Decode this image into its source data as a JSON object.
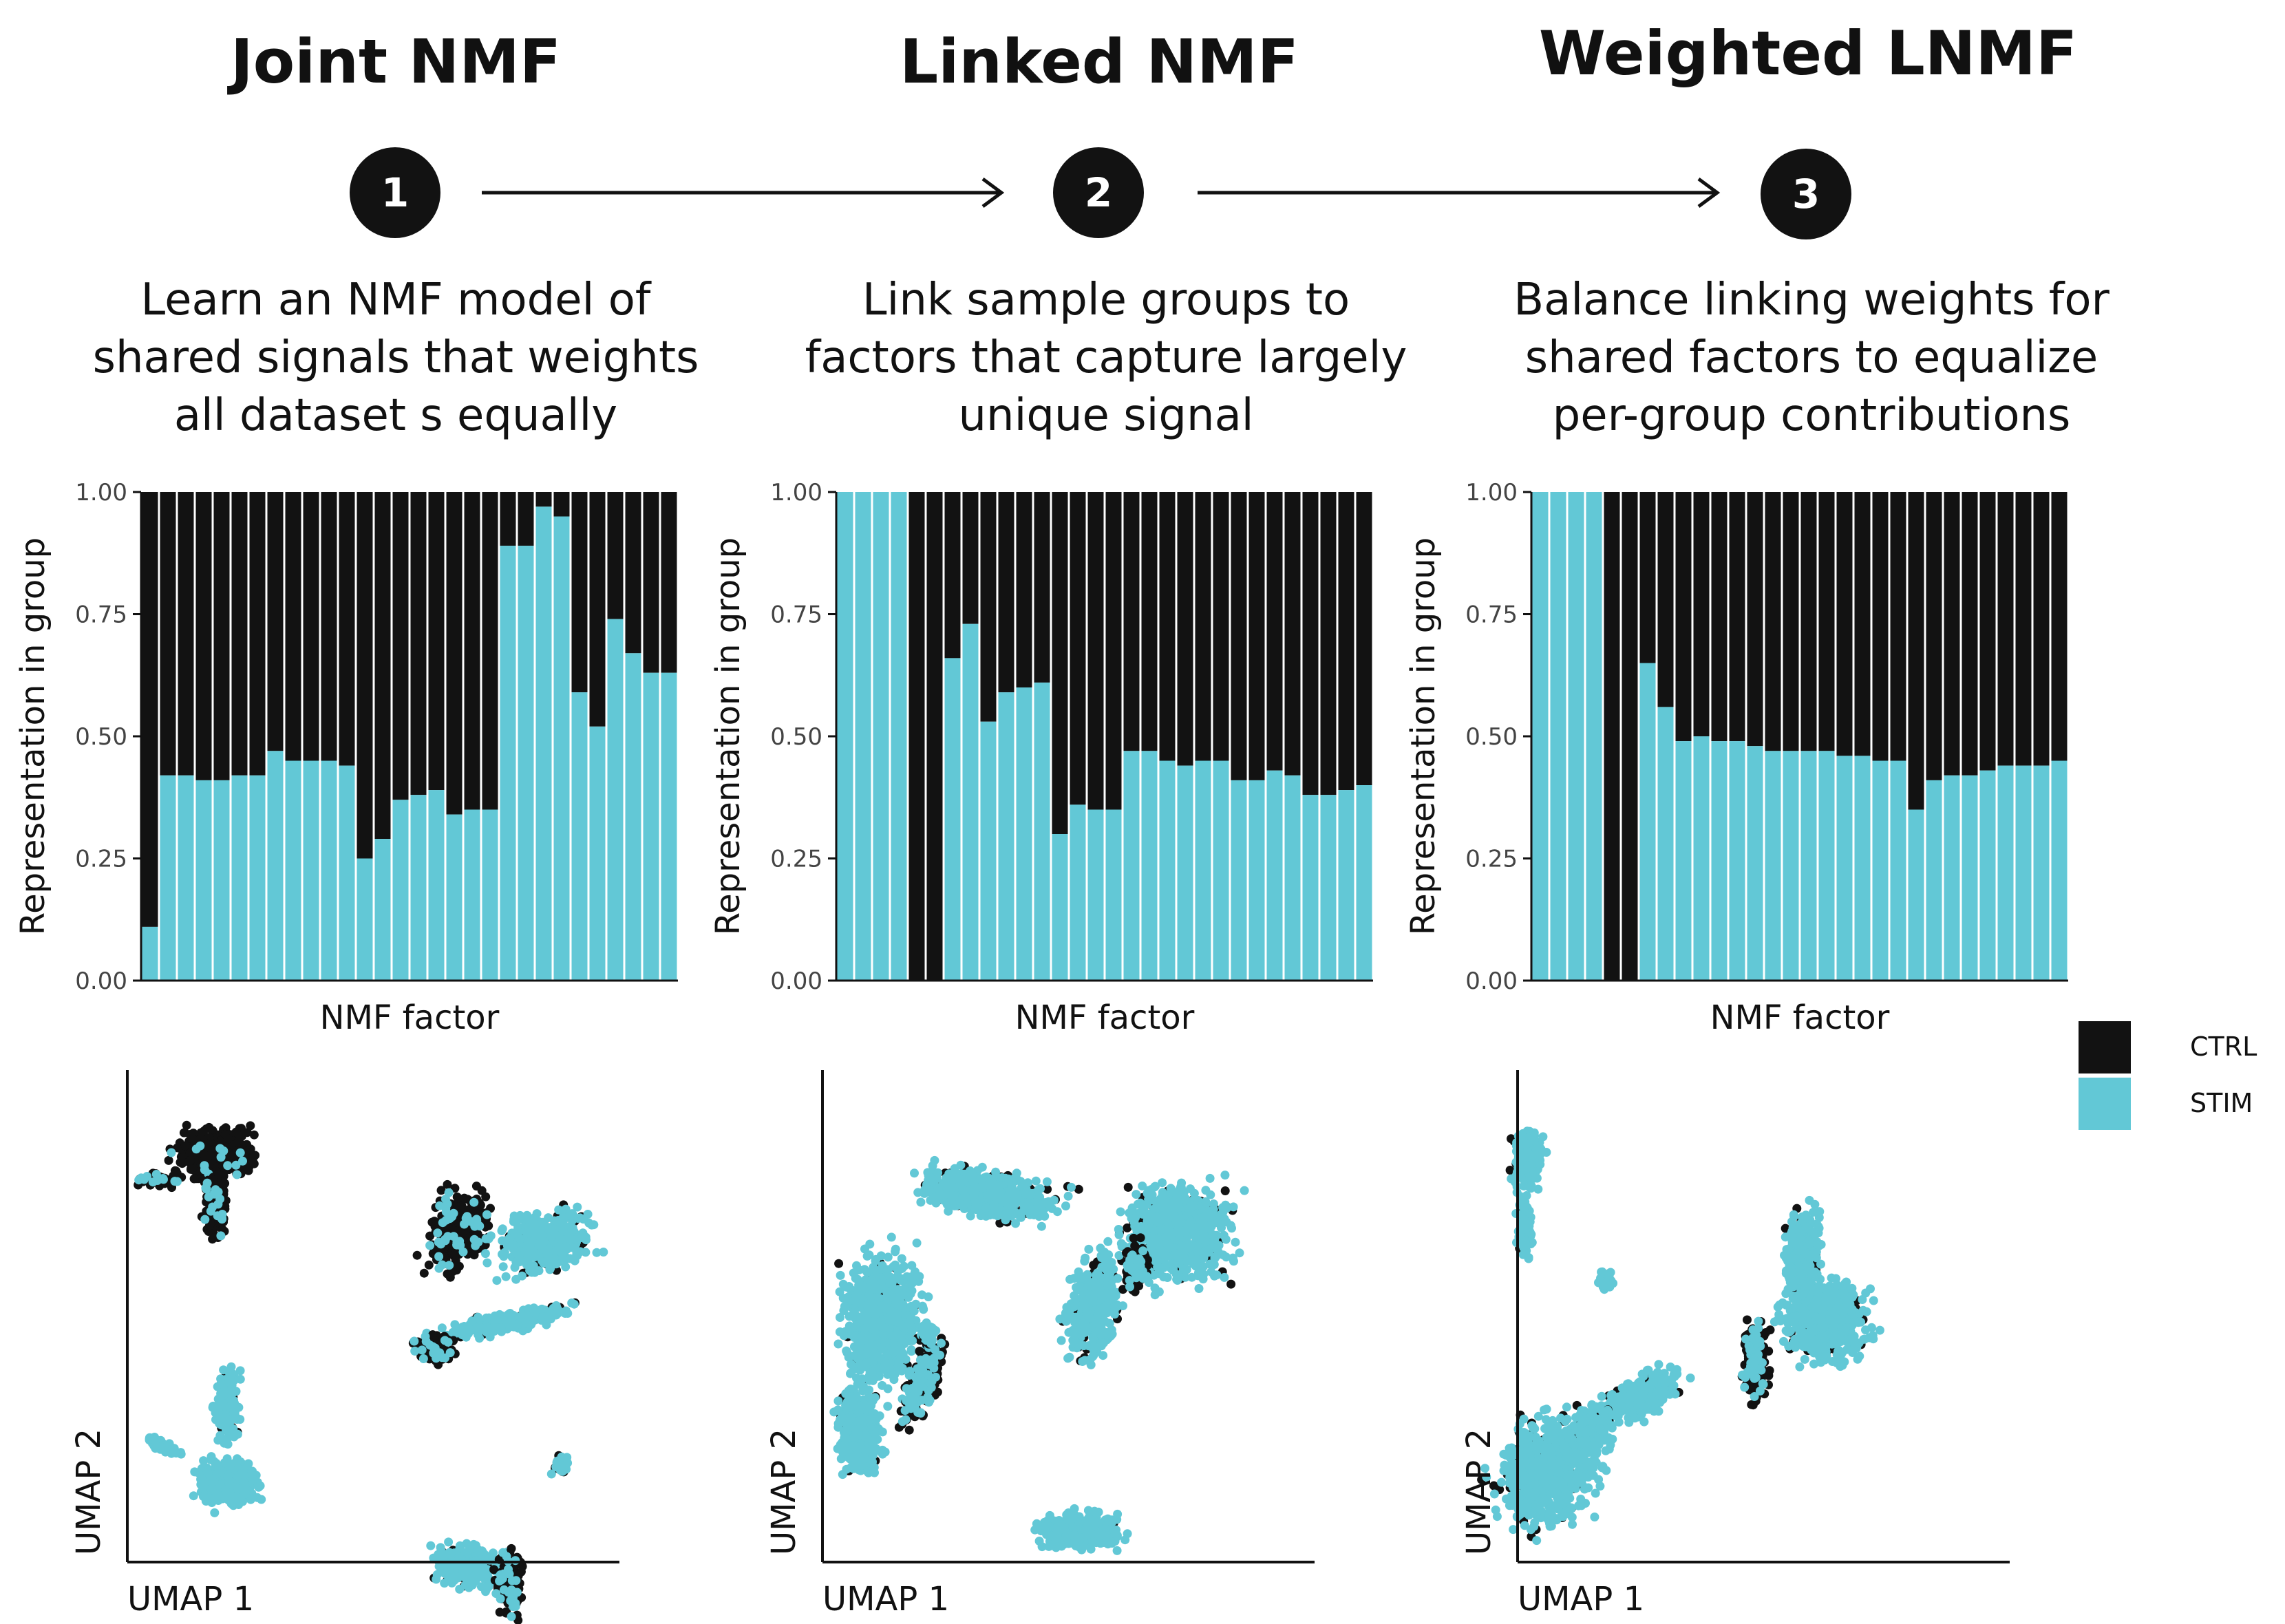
{
  "steps": [
    {
      "number": "1",
      "title": "Joint NMF",
      "description": [
        "Learn an NMF model of",
        "shared signals that weights",
        "all dataset s equally"
      ]
    },
    {
      "number": "2",
      "title": "Linked NMF",
      "description": [
        "Link sample groups to",
        "factors that capture largely",
        "unique signal"
      ]
    },
    {
      "number": "3",
      "title": "Weighted LNMF",
      "description": [
        "Balance linking weights for",
        "shared factors to equalize",
        "per-group contributions"
      ]
    }
  ],
  "colors": {
    "ctrl": "#121212",
    "stim": "#62c8d6",
    "axis": "#111111"
  },
  "legend": [
    {
      "label": "CTRL",
      "color": "#121212"
    },
    {
      "label": "STIM",
      "color": "#62c8d6"
    }
  ],
  "chart_data": [
    {
      "type": "bar",
      "stacked": true,
      "panel": "Joint NMF",
      "xlabel": "NMF factor",
      "ylabel": "Representation in group",
      "ylim": [
        0,
        1
      ],
      "yticks": [
        "0.00",
        "0.25",
        "0.50",
        "0.75",
        "1.00"
      ],
      "series": [
        {
          "name": "STIM",
          "values": [
            0.11,
            0.42,
            0.42,
            0.41,
            0.41,
            0.42,
            0.42,
            0.47,
            0.45,
            0.45,
            0.45,
            0.44,
            0.25,
            0.29,
            0.37,
            0.38,
            0.39,
            0.34,
            0.35,
            0.35,
            0.89,
            0.89,
            0.97,
            0.95,
            0.59,
            0.52,
            0.74,
            0.67,
            0.63,
            0.63
          ]
        }
      ]
    },
    {
      "type": "bar",
      "stacked": true,
      "panel": "Linked NMF",
      "xlabel": "NMF factor",
      "ylabel": "Representation in group",
      "ylim": [
        0,
        1
      ],
      "yticks": [
        "0.00",
        "0.25",
        "0.50",
        "0.75",
        "1.00"
      ],
      "series": [
        {
          "name": "STIM",
          "values": [
            1.0,
            1.0,
            1.0,
            1.0,
            0.0,
            0.0,
            0.66,
            0.73,
            0.53,
            0.59,
            0.6,
            0.61,
            0.3,
            0.36,
            0.35,
            0.35,
            0.47,
            0.47,
            0.45,
            0.44,
            0.45,
            0.45,
            0.41,
            0.41,
            0.43,
            0.42,
            0.38,
            0.38,
            0.39,
            0.4
          ]
        }
      ]
    },
    {
      "type": "bar",
      "stacked": true,
      "panel": "Weighted LNMF",
      "xlabel": "NMF factor",
      "ylabel": "Representation in group",
      "ylim": [
        0,
        1
      ],
      "yticks": [
        "0.00",
        "0.25",
        "0.50",
        "0.75",
        "1.00"
      ],
      "series": [
        {
          "name": "STIM",
          "values": [
            1.0,
            1.0,
            1.0,
            1.0,
            0.0,
            0.0,
            0.65,
            0.56,
            0.49,
            0.5,
            0.49,
            0.49,
            0.48,
            0.47,
            0.47,
            0.47,
            0.47,
            0.46,
            0.46,
            0.45,
            0.45,
            0.35,
            0.41,
            0.42,
            0.42,
            0.43,
            0.44,
            0.44,
            0.44,
            0.45
          ]
        }
      ]
    },
    {
      "type": "scatter",
      "panel": "Joint NMF",
      "xlabel": "UMAP 1",
      "ylabel": "UMAP 2"
    },
    {
      "type": "scatter",
      "panel": "Linked NMF",
      "xlabel": "UMAP 1",
      "ylabel": "UMAP 2"
    },
    {
      "type": "scatter",
      "panel": "Weighted LNMF",
      "xlabel": "UMAP 1",
      "ylabel": "UMAP 2"
    }
  ]
}
